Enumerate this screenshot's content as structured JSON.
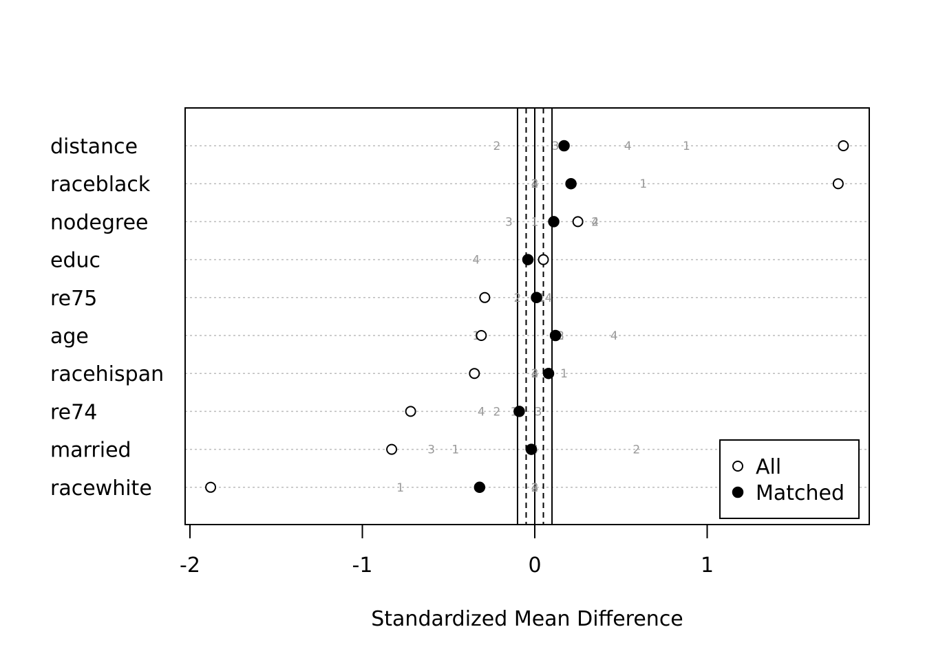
{
  "chart_data": {
    "type": "scatter",
    "xlabel": "Standardized Mean Difference",
    "xlim": [
      -2.0,
      1.88
    ],
    "xticks": [
      -2,
      -1,
      0,
      1
    ],
    "tick_labels": [
      "-2",
      "-1",
      "0",
      "1"
    ],
    "reference_lines": {
      "solid": [
        -0.1,
        0,
        0.1
      ],
      "dashed": [
        -0.05,
        0.05
      ]
    },
    "grid": "horizontal dotted",
    "legend_position": "bottom-right",
    "legend": [
      {
        "label": "All",
        "marker": "open-circle"
      },
      {
        "label": "Matched",
        "marker": "filled-circle"
      }
    ],
    "variables": [
      "distance",
      "raceblack",
      "nodegree",
      "educ",
      "re75",
      "age",
      "racehispan",
      "re74",
      "married",
      "racewhite"
    ],
    "series": [
      {
        "name": "All",
        "values": [
          1.79,
          1.76,
          0.25,
          0.05,
          -0.29,
          -0.31,
          -0.35,
          -0.72,
          -0.83,
          -1.88
        ]
      },
      {
        "name": "Matched",
        "values": [
          0.17,
          0.21,
          0.11,
          -0.04,
          0.01,
          0.12,
          0.08,
          -0.09,
          -0.02,
          -0.32
        ]
      }
    ],
    "subclass_points": [
      {
        "variable": "distance",
        "points": [
          {
            "label": "2",
            "x": -0.22
          },
          {
            "label": "3",
            "x": 0.12
          },
          {
            "label": "4",
            "x": 0.54
          },
          {
            "label": "1",
            "x": 0.88
          }
        ]
      },
      {
        "variable": "raceblack",
        "points": [
          {
            "label": "2",
            "x": 0.0
          },
          {
            "label": "3",
            "x": 0.0
          },
          {
            "label": "4",
            "x": 0.0
          },
          {
            "label": "1",
            "x": 0.63
          }
        ]
      },
      {
        "variable": "nodegree",
        "points": [
          {
            "label": "3",
            "x": -0.15
          },
          {
            "label": "1",
            "x": 0.0
          },
          {
            "label": "4",
            "x": 0.35
          },
          {
            "label": "2",
            "x": 0.35
          }
        ]
      },
      {
        "variable": "educ",
        "points": [
          {
            "label": "4",
            "x": -0.34
          }
        ]
      },
      {
        "variable": "re75",
        "points": [
          {
            "label": "2",
            "x": -0.1
          },
          {
            "label": "1",
            "x": 0.04
          },
          {
            "label": "4",
            "x": 0.08
          }
        ]
      },
      {
        "variable": "age",
        "points": [
          {
            "label": "1",
            "x": -0.34
          },
          {
            "label": "2",
            "x": 0.15
          },
          {
            "label": "3",
            "x": 0.15
          },
          {
            "label": "4",
            "x": 0.46
          }
        ]
      },
      {
        "variable": "racehispan",
        "points": [
          {
            "label": "2",
            "x": 0.0
          },
          {
            "label": "3",
            "x": 0.0
          },
          {
            "label": "4",
            "x": 0.0
          },
          {
            "label": "1",
            "x": 0.17
          }
        ]
      },
      {
        "variable": "re74",
        "points": [
          {
            "label": "4",
            "x": -0.31
          },
          {
            "label": "2",
            "x": -0.22
          },
          {
            "label": "1",
            "x": -0.12
          },
          {
            "label": "3",
            "x": 0.02
          }
        ]
      },
      {
        "variable": "married",
        "points": [
          {
            "label": "3",
            "x": -0.6
          },
          {
            "label": "1",
            "x": -0.46
          },
          {
            "label": "4",
            "x": 0.0
          },
          {
            "label": "2",
            "x": 0.59
          }
        ]
      },
      {
        "variable": "racewhite",
        "points": [
          {
            "label": "1",
            "x": -0.78
          },
          {
            "label": "2",
            "x": 0.0
          },
          {
            "label": "3",
            "x": 0.0
          },
          {
            "label": "4",
            "x": 0.0
          }
        ]
      }
    ]
  }
}
